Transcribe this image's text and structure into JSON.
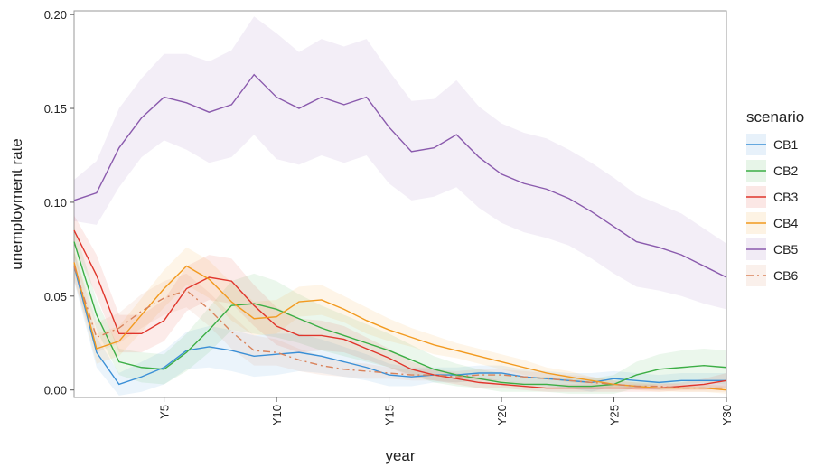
{
  "chart_data": {
    "type": "line",
    "x_label": "year",
    "y_label": "unemployment rate",
    "legend_title": "scenario",
    "legend_position": "right",
    "x": [
      1,
      2,
      3,
      4,
      5,
      6,
      7,
      8,
      9,
      10,
      11,
      12,
      13,
      14,
      15,
      16,
      17,
      18,
      19,
      20,
      21,
      22,
      23,
      24,
      25,
      26,
      27,
      28,
      29,
      30
    ],
    "xlim": [
      1,
      30
    ],
    "xticks": [
      {
        "value": 5,
        "label": "Y5"
      },
      {
        "value": 10,
        "label": "Y10"
      },
      {
        "value": 15,
        "label": "Y15"
      },
      {
        "value": 20,
        "label": "Y20"
      },
      {
        "value": 25,
        "label": "Y25"
      },
      {
        "value": 30,
        "label": "Y30"
      }
    ],
    "ylim": [
      -0.004,
      0.202
    ],
    "yticks": [
      {
        "value": 0,
        "label": "0.00"
      },
      0.05,
      {
        "value": 0.1,
        "label": "0.10"
      },
      0.15,
      {
        "value": 0.2,
        "label": "0.20"
      }
    ],
    "series": [
      {
        "name": "CB1",
        "color": "#3a8fd6",
        "dash": "solid",
        "values": [
          0.066,
          0.02,
          0.003,
          0.007,
          0.012,
          0.021,
          0.023,
          0.021,
          0.018,
          0.019,
          0.02,
          0.018,
          0.015,
          0.012,
          0.008,
          0.007,
          0.008,
          0.008,
          0.009,
          0.009,
          0.007,
          0.006,
          0.005,
          0.004,
          0.006,
          0.005,
          0.004,
          0.005,
          0.005,
          0.005
        ],
        "upper": [
          0.074,
          0.028,
          0.009,
          0.015,
          0.021,
          0.031,
          0.034,
          0.032,
          0.029,
          0.03,
          0.03,
          0.027,
          0.023,
          0.019,
          0.014,
          0.012,
          0.012,
          0.012,
          0.013,
          0.013,
          0.011,
          0.01,
          0.009,
          0.009,
          0.01,
          0.009,
          0.008,
          0.009,
          0.009,
          0.009
        ],
        "lower": [
          0.058,
          0.012,
          -0.003,
          -0.001,
          0.003,
          0.011,
          0.012,
          0.01,
          0.007,
          0.008,
          0.01,
          0.009,
          0.007,
          0.005,
          0.002,
          0.002,
          0.004,
          0.004,
          0.005,
          0.005,
          0.003,
          0.002,
          0.001,
          -0.001,
          0.002,
          0.001,
          0.0,
          0.001,
          0.001,
          0.001
        ]
      },
      {
        "name": "CB2",
        "color": "#3cae45",
        "dash": "solid",
        "values": [
          0.079,
          0.04,
          0.015,
          0.012,
          0.011,
          0.02,
          0.032,
          0.045,
          0.046,
          0.043,
          0.038,
          0.033,
          0.029,
          0.025,
          0.021,
          0.016,
          0.011,
          0.008,
          0.006,
          0.004,
          0.003,
          0.003,
          0.002,
          0.002,
          0.003,
          0.008,
          0.011,
          0.012,
          0.013,
          0.012
        ],
        "upper": [
          0.087,
          0.048,
          0.022,
          0.02,
          0.019,
          0.03,
          0.044,
          0.058,
          0.062,
          0.058,
          0.051,
          0.045,
          0.04,
          0.035,
          0.03,
          0.024,
          0.018,
          0.014,
          0.011,
          0.009,
          0.007,
          0.007,
          0.006,
          0.006,
          0.008,
          0.015,
          0.019,
          0.021,
          0.022,
          0.021
        ],
        "lower": [
          0.071,
          0.032,
          0.008,
          0.004,
          0.003,
          0.01,
          0.02,
          0.032,
          0.03,
          0.028,
          0.025,
          0.021,
          0.018,
          0.015,
          0.012,
          0.008,
          0.004,
          0.002,
          0.001,
          -0.001,
          -0.001,
          -0.001,
          -0.002,
          -0.002,
          -0.002,
          0.001,
          0.003,
          0.003,
          0.004,
          0.003
        ]
      },
      {
        "name": "CB3",
        "color": "#e0362c",
        "dash": "solid",
        "values": [
          0.085,
          0.061,
          0.03,
          0.03,
          0.037,
          0.054,
          0.06,
          0.058,
          0.045,
          0.034,
          0.029,
          0.029,
          0.027,
          0.022,
          0.017,
          0.011,
          0.008,
          0.006,
          0.004,
          0.003,
          0.002,
          0.001,
          0.001,
          0.001,
          0.001,
          0.001,
          0.001,
          0.002,
          0.003,
          0.005
        ],
        "upper": [
          0.093,
          0.072,
          0.04,
          0.04,
          0.048,
          0.066,
          0.072,
          0.07,
          0.056,
          0.044,
          0.038,
          0.037,
          0.034,
          0.028,
          0.022,
          0.015,
          0.011,
          0.009,
          0.007,
          0.005,
          0.004,
          0.003,
          0.003,
          0.003,
          0.003,
          0.003,
          0.003,
          0.004,
          0.006,
          0.009
        ],
        "lower": [
          0.077,
          0.05,
          0.02,
          0.02,
          0.026,
          0.042,
          0.048,
          0.046,
          0.034,
          0.024,
          0.02,
          0.021,
          0.02,
          0.016,
          0.012,
          0.007,
          0.005,
          0.003,
          0.001,
          0.001,
          0.0,
          -0.001,
          -0.001,
          -0.001,
          -0.001,
          -0.001,
          -0.001,
          0.0,
          0.0,
          0.001
        ]
      },
      {
        "name": "CB4",
        "color": "#f29a1f",
        "dash": "solid",
        "values": [
          0.068,
          0.022,
          0.026,
          0.04,
          0.054,
          0.066,
          0.059,
          0.047,
          0.038,
          0.039,
          0.047,
          0.048,
          0.043,
          0.037,
          0.032,
          0.028,
          0.024,
          0.021,
          0.018,
          0.015,
          0.012,
          0.009,
          0.007,
          0.005,
          0.003,
          0.002,
          0.001,
          0.001,
          0.001,
          0.0
        ],
        "upper": [
          0.076,
          0.03,
          0.034,
          0.049,
          0.064,
          0.076,
          0.069,
          0.057,
          0.047,
          0.048,
          0.055,
          0.056,
          0.05,
          0.044,
          0.038,
          0.033,
          0.029,
          0.025,
          0.022,
          0.019,
          0.016,
          0.012,
          0.01,
          0.007,
          0.005,
          0.004,
          0.003,
          0.003,
          0.003,
          0.002
        ],
        "lower": [
          0.06,
          0.014,
          0.018,
          0.031,
          0.044,
          0.056,
          0.049,
          0.037,
          0.029,
          0.03,
          0.039,
          0.04,
          0.036,
          0.03,
          0.026,
          0.023,
          0.019,
          0.017,
          0.014,
          0.011,
          0.008,
          0.006,
          0.004,
          0.003,
          0.001,
          0.0,
          -0.001,
          -0.001,
          -0.001,
          -0.002
        ]
      },
      {
        "name": "CB5",
        "color": "#8a5aad",
        "dash": "solid",
        "values": [
          0.101,
          0.105,
          0.129,
          0.145,
          0.156,
          0.153,
          0.148,
          0.152,
          0.168,
          0.156,
          0.15,
          0.156,
          0.152,
          0.156,
          0.14,
          0.127,
          0.129,
          0.136,
          0.124,
          0.115,
          0.11,
          0.107,
          0.102,
          0.095,
          0.087,
          0.079,
          0.076,
          0.072,
          0.066,
          0.06
        ],
        "upper": [
          0.112,
          0.122,
          0.15,
          0.166,
          0.179,
          0.179,
          0.175,
          0.181,
          0.199,
          0.19,
          0.18,
          0.187,
          0.183,
          0.187,
          0.17,
          0.154,
          0.155,
          0.165,
          0.151,
          0.142,
          0.137,
          0.134,
          0.128,
          0.121,
          0.113,
          0.104,
          0.099,
          0.094,
          0.086,
          0.078
        ],
        "lower": [
          0.09,
          0.088,
          0.108,
          0.124,
          0.133,
          0.128,
          0.121,
          0.124,
          0.136,
          0.123,
          0.12,
          0.125,
          0.121,
          0.125,
          0.11,
          0.101,
          0.103,
          0.108,
          0.097,
          0.089,
          0.084,
          0.081,
          0.077,
          0.07,
          0.062,
          0.055,
          0.053,
          0.05,
          0.046,
          0.043
        ]
      },
      {
        "name": "CB6",
        "color": "#d9825a",
        "dash": "dashdot",
        "values": [
          0.066,
          0.028,
          0.033,
          0.042,
          0.049,
          0.053,
          0.043,
          0.031,
          0.021,
          0.02,
          0.016,
          0.013,
          0.011,
          0.01,
          0.009,
          0.008,
          0.008,
          0.007,
          0.008,
          0.008,
          0.007,
          0.006,
          0.005,
          0.004,
          0.003,
          0.002,
          0.002,
          0.001,
          0.001,
          0.001
        ],
        "upper": [
          0.074,
          0.036,
          0.041,
          0.051,
          0.058,
          0.062,
          0.052,
          0.04,
          0.029,
          0.027,
          0.022,
          0.018,
          0.015,
          0.014,
          0.012,
          0.011,
          0.011,
          0.01,
          0.011,
          0.011,
          0.01,
          0.009,
          0.008,
          0.007,
          0.005,
          0.004,
          0.004,
          0.003,
          0.003,
          0.003
        ],
        "lower": [
          0.058,
          0.02,
          0.025,
          0.033,
          0.04,
          0.044,
          0.034,
          0.022,
          0.013,
          0.013,
          0.01,
          0.008,
          0.007,
          0.006,
          0.006,
          0.005,
          0.005,
          0.004,
          0.005,
          0.005,
          0.004,
          0.003,
          0.002,
          0.001,
          0.001,
          0.0,
          0.0,
          -0.001,
          -0.001,
          -0.001
        ]
      }
    ]
  }
}
